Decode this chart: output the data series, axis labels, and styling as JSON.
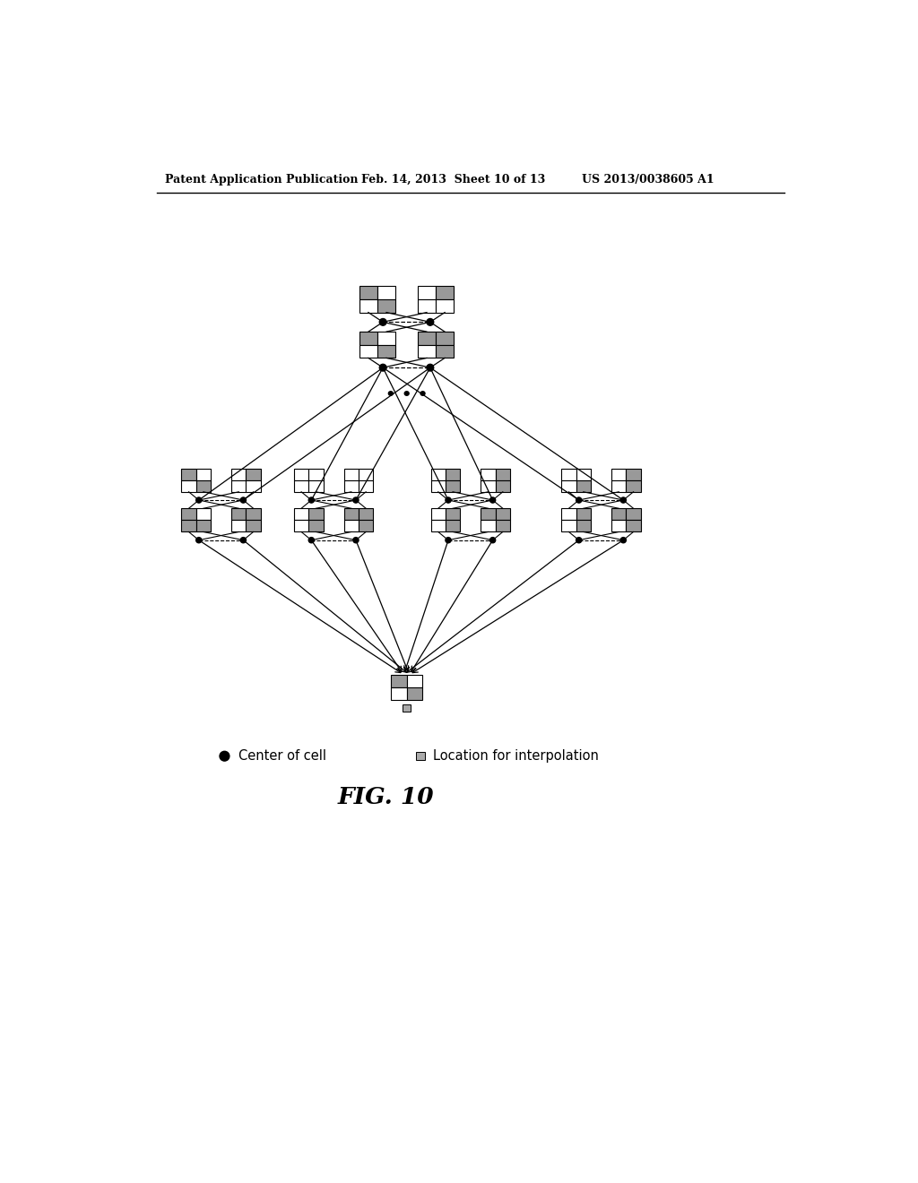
{
  "header_left": "Patent Application Publication",
  "header_mid": "Feb. 14, 2013  Sheet 10 of 13",
  "header_right": "US 2013/0038605 A1",
  "fig_label": "FIG. 10",
  "legend_dot": "Center of cell",
  "legend_square": "Location for interpolation",
  "background": "#ffffff"
}
